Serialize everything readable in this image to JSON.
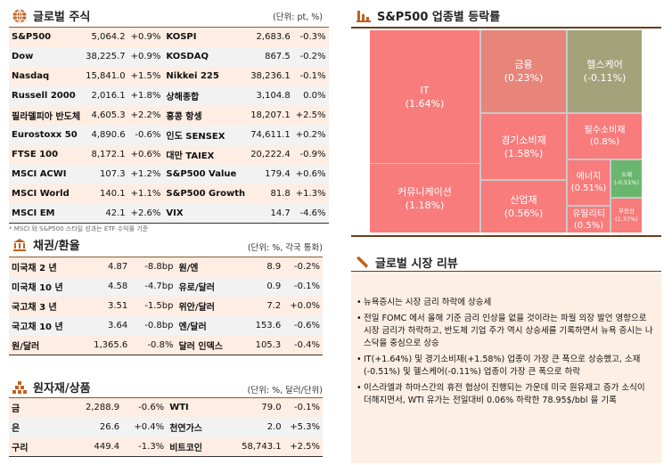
{
  "equities": {
    "title": "글로벌 주식",
    "unit": "(단위: pt, %)",
    "note": "* MSCI 와 S&P500 스타일 성과는 ETF 수익률 기준",
    "rows": [
      [
        "S&P500",
        "5,064.2",
        "+0.9%",
        "KOSPI",
        "2,683.6",
        "-0.3%"
      ],
      [
        "Dow",
        "38,225.7",
        "+0.9%",
        "KOSDAQ",
        "867.5",
        "-0.2%"
      ],
      [
        "Nasdaq",
        "15,841.0",
        "+1.5%",
        "Nikkei 225",
        "38,236.1",
        "-0.1%"
      ],
      [
        "Russell 2000",
        "2,016.1",
        "+1.8%",
        "상해종합",
        "3,104.8",
        "0.0%"
      ],
      [
        "필라델피아 반도체",
        "4,605.3",
        "+2.2%",
        "홍콩 항셍",
        "18,207.1",
        "+2.5%"
      ],
      [
        "Eurostoxx 50",
        "4,890.6",
        "-0.6%",
        "인도 SENSEX",
        "74,611.1",
        "+0.2%"
      ],
      [
        "FTSE 100",
        "8,172.1",
        "+0.6%",
        "대만 TAIEX",
        "20,222.4",
        "-0.9%"
      ],
      [
        "MSCI ACWI",
        "107.3",
        "+1.2%",
        "S&P500 Value",
        "179.4",
        "+0.6%"
      ],
      [
        "MSCI World",
        "140.1",
        "+1.1%",
        "S&P500 Growth",
        "81.8",
        "+1.3%"
      ],
      [
        "MSCI EM",
        "42.1",
        "+2.6%",
        "VIX",
        "14.7",
        "-4.6%"
      ]
    ]
  },
  "bonds": {
    "title": "채권/환율",
    "unit": "(단위: %, 각국 통화)",
    "rows": [
      [
        "미국채 2 년",
        "4.87",
        "-8.8bp",
        "원/엔",
        "8.9",
        "-0.2%"
      ],
      [
        "미국채 10 년",
        "4.58",
        "-4.7bp",
        "유로/달러",
        "0.9",
        "-0.1%"
      ],
      [
        "국고채 3 년",
        "3.51",
        "-1.5bp",
        "위안/달러",
        "7.2",
        "+0.0%"
      ],
      [
        "국고채 10 년",
        "3.64",
        "-0.8bp",
        "엔/달러",
        "153.6",
        "-0.6%"
      ],
      [
        "원/달러",
        "1,365.6",
        "-0.8%",
        "달러 인덱스",
        "105.3",
        "-0.4%"
      ]
    ]
  },
  "commodities": {
    "title": "원자재/상품",
    "unit": "(단위: %, 달러/단위)",
    "rows": [
      [
        "금",
        "2,288.9",
        "-0.6%",
        "WTI",
        "79.0",
        "-0.1%"
      ],
      [
        "은",
        "26.6",
        "+0.4%",
        "천연가스",
        "2.0",
        "+5.3%"
      ],
      [
        "구리",
        "449.4",
        "-1.3%",
        "비트코인",
        "58,743.1",
        "+2.5%"
      ]
    ]
  },
  "sectors": {
    "title": "S&P500 업종별 등락률",
    "items": [
      {
        "name": "IT",
        "change": "(1.64%)",
        "color": "#f87c7c"
      },
      {
        "name": "커뮤니케이션",
        "change": "(1.18%)",
        "color": "#f87c7c"
      },
      {
        "name": "금융",
        "change": "(0.23%)",
        "color": "#e8857a"
      },
      {
        "name": "헬스케어",
        "change": "(-0.11%)",
        "color": "#a3a27b"
      },
      {
        "name": "경기소비재",
        "change": "(1.58%)",
        "color": "#f87c7c"
      },
      {
        "name": "산업재",
        "change": "(0.56%)",
        "color": "#f87c7c"
      },
      {
        "name": "필수소비재",
        "change": "(0.8%)",
        "color": "#f87c7c"
      },
      {
        "name": "에너지",
        "change": "(0.51%)",
        "color": "#f87c7c"
      },
      {
        "name": "소재",
        "change": "(-0.51%)",
        "color": "#6bb66f"
      },
      {
        "name": "유틸리티",
        "change": "(0.5%)",
        "color": "#f87c7c"
      },
      {
        "name": "부동산",
        "change": "(1.37%)",
        "color": "#f87c7c"
      }
    ]
  },
  "review": {
    "title": "글로벌 시장 리뷰",
    "bullets": [
      "뉴욕증시는 시장 금리 하락에 상승세",
      "전일 FOMC 에서 올해 기준 금리 인상을 없을 것이라는 파월 의장 발언 영향으로 시장 금리가 하락하고, 반도체 기업 주가 역시 상승세를 기록하면서 뉴욕 증시는 나스닥을 중심으로 상승",
      "IT(+1.64%) 및 경기소비재(+1.58%) 업종이 가장 큰 폭으로 상승했고, 소재(-0.51%) 및 헬스케어(-0.11%) 업종이 가장 큰 폭으로 하락",
      "이스라엘과 하마스간의 휴전 협상이 진행되는 가운데 미국 원유재고 증가 소식이 더해지면서, WTI 유가는 전일대비 0.06% 하락한 78.95$/bbl 을 기록"
    ]
  },
  "accent": "#c0601f"
}
